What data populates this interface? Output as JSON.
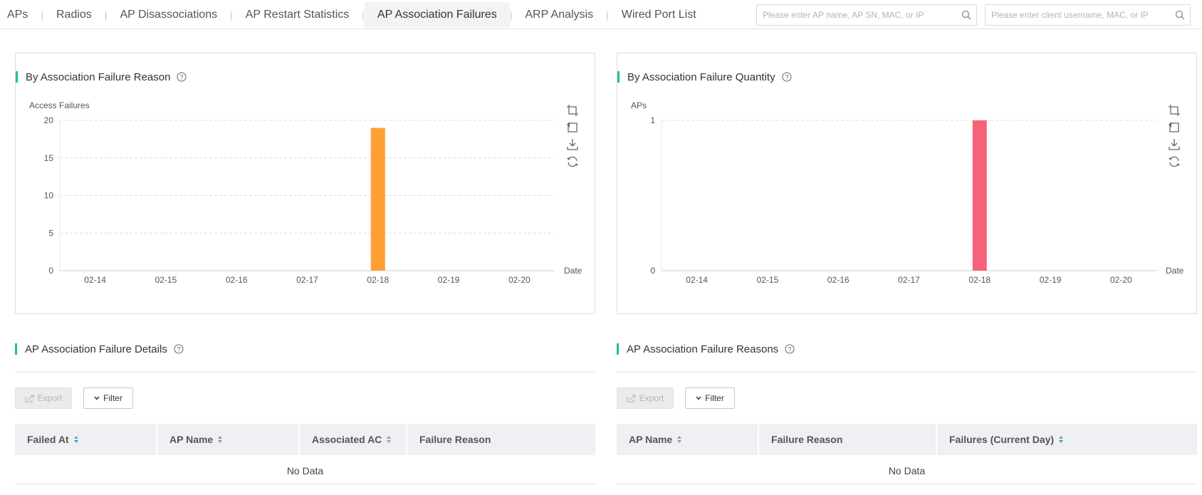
{
  "tabs": [
    {
      "label": "APs",
      "active": false
    },
    {
      "label": "Radios",
      "active": false
    },
    {
      "label": "AP Disassociations",
      "active": false
    },
    {
      "label": "AP Restart Statistics",
      "active": false
    },
    {
      "label": "AP Association Failures",
      "active": true
    },
    {
      "label": "ARP Analysis",
      "active": false
    },
    {
      "label": "Wired Port List",
      "active": false
    }
  ],
  "search": {
    "ap_placeholder": "Please enter AP name, AP SN, MAC, or IP",
    "client_placeholder": "Please enter client username, MAC, or IP"
  },
  "colors": {
    "accent": "#1fbf9f",
    "bar_reason": "#ffa034",
    "bar_quantity": "#f6627a",
    "sort_active": "#2d9bf0"
  },
  "panels": {
    "reason": {
      "title": "By Association Failure Reason"
    },
    "quantity": {
      "title": "By Association Failure Quantity"
    }
  },
  "chart_data": [
    {
      "type": "bar",
      "title": "By Association Failure Reason",
      "ylabel": "Access Failures",
      "xlabel": "Date",
      "categories": [
        "02-14",
        "02-15",
        "02-16",
        "02-17",
        "02-18",
        "02-19",
        "02-20"
      ],
      "values": [
        0,
        0,
        0,
        0,
        19,
        0,
        0
      ],
      "ylim": [
        0,
        20
      ],
      "yticks": [
        0,
        5,
        10,
        15,
        20
      ],
      "grid": true,
      "color": "#ffa034"
    },
    {
      "type": "bar",
      "title": "By Association Failure Quantity",
      "ylabel": "APs",
      "xlabel": "Date",
      "categories": [
        "02-14",
        "02-15",
        "02-16",
        "02-17",
        "02-18",
        "02-19",
        "02-20"
      ],
      "values": [
        0,
        0,
        0,
        0,
        1,
        0,
        0
      ],
      "ylim": [
        0,
        1
      ],
      "yticks": [
        0,
        1
      ],
      "grid": true,
      "color": "#f6627a"
    }
  ],
  "details": {
    "title": "AP Association Failure Details",
    "export_label": "Export",
    "filter_label": "Filter",
    "columns": [
      "Failed At",
      "AP Name",
      "Associated AC",
      "Failure Reason"
    ],
    "empty_text": "No Data"
  },
  "reasons": {
    "title": "AP Association Failure Reasons",
    "export_label": "Export",
    "filter_label": "Filter",
    "columns": [
      "AP Name",
      "Failure Reason",
      "Failures (Current Day)"
    ],
    "empty_text": "No Data"
  },
  "icons": {
    "search": "search-icon",
    "help": "help-circle-icon",
    "zoom": "crop-zoom-icon",
    "restore": "restore-icon",
    "download": "download-icon",
    "refresh": "refresh-icon",
    "export": "export-icon",
    "filter": "chevron-down-icon",
    "sort": "sort-icon"
  }
}
